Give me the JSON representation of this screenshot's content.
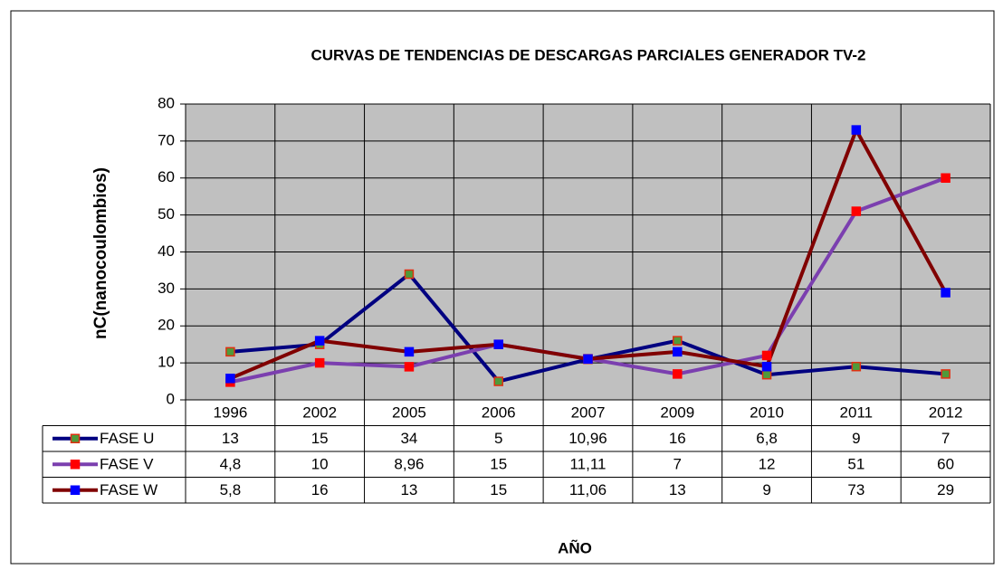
{
  "chart_data": {
    "type": "line",
    "title": "CURVAS DE TENDENCIAS DE DESCARGAS PARCIALES GENERADOR TV-2",
    "ylabel": "nC(nanocoulombios)",
    "xlabel": "AÑO",
    "categories": [
      "1996",
      "2002",
      "2005",
      "2006",
      "2007",
      "2009",
      "2010",
      "2011",
      "2012"
    ],
    "series": [
      {
        "name": "FASE U",
        "color": "#000080",
        "marker_color": "#4F9A3A",
        "marker_edge": "#E03010",
        "values": [
          13,
          15,
          34,
          5,
          10.96,
          16,
          6.8,
          9,
          7
        ],
        "value_labels": [
          "13",
          "15",
          "34",
          "5",
          "10,96",
          "16",
          "6,8",
          "9",
          "7"
        ]
      },
      {
        "name": "FASE V",
        "color": "#7B3FAF",
        "marker_color": "#FF0000",
        "marker_edge": "#FF0000",
        "values": [
          4.8,
          10,
          8.96,
          15,
          11.11,
          7,
          12,
          51,
          60
        ],
        "value_labels": [
          "4,8",
          "10",
          "8,96",
          "15",
          "11,11",
          "7",
          "12",
          "51",
          "60"
        ]
      },
      {
        "name": "FASE W",
        "color": "#800000",
        "marker_color": "#0000FF",
        "marker_edge": "#0000FF",
        "values": [
          5.8,
          16,
          13,
          15,
          11.06,
          13,
          9,
          73,
          29
        ],
        "value_labels": [
          "5,8",
          "16",
          "13",
          "15",
          "11,06",
          "13",
          "9",
          "73",
          "29"
        ]
      }
    ],
    "ylim": [
      0,
      80
    ],
    "yticks": [
      0,
      10,
      20,
      30,
      40,
      50,
      60,
      70,
      80
    ],
    "grid": true,
    "plot_background": "#C0C0C0"
  }
}
